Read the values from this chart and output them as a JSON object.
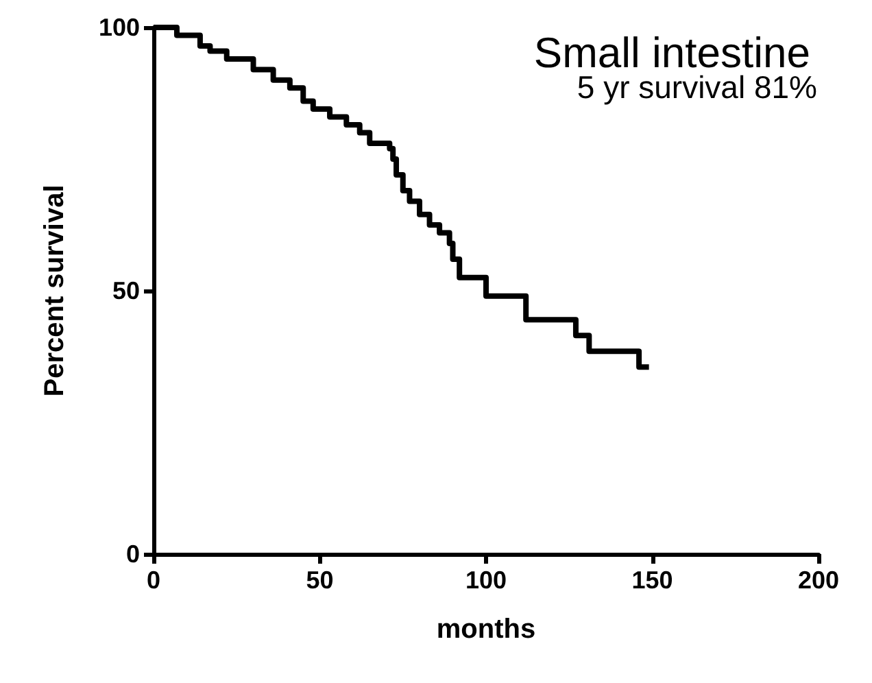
{
  "chart_data": {
    "type": "step",
    "title": "Small intestine",
    "annotations": [
      "5 yr survival 81%"
    ],
    "xlabel": "months",
    "ylabel": "Percent survival",
    "x": [
      0,
      7,
      14,
      17,
      22,
      30,
      36,
      41,
      45,
      48,
      53,
      58,
      62,
      65,
      71,
      72,
      73,
      75,
      77,
      80,
      83,
      86,
      89,
      90,
      92,
      100,
      112,
      127,
      131,
      146,
      149
    ],
    "values": [
      100,
      98.5,
      96.5,
      95.5,
      94,
      92,
      90,
      88.5,
      86,
      84.5,
      83,
      81.5,
      80,
      78,
      77,
      75,
      72,
      69,
      67,
      64.5,
      62.5,
      61,
      59,
      56,
      52.5,
      49,
      44.5,
      41.5,
      38.5,
      35.5,
      35.5
    ],
    "color": "#000000",
    "xlim": [
      0,
      200
    ],
    "xticks": [
      0,
      50,
      100,
      150,
      200
    ],
    "ylim": [
      0,
      100
    ],
    "yticks": [
      0,
      50,
      100
    ],
    "grid": false,
    "marker": "none",
    "line_style": "solid"
  }
}
